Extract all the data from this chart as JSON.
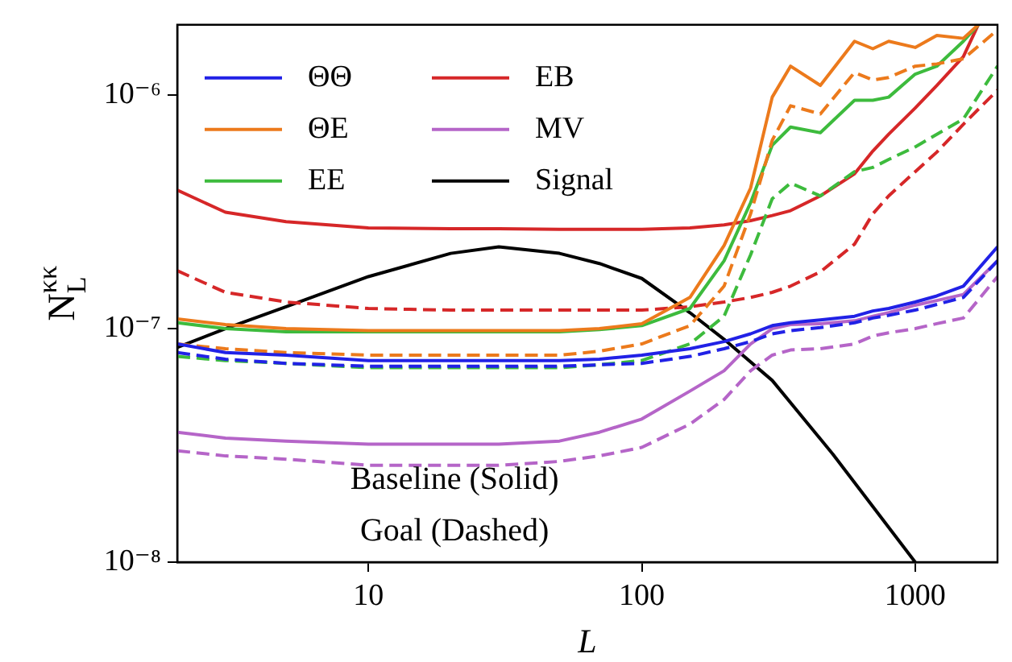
{
  "chart_data": {
    "type": "line",
    "xlabel": "L",
    "ylabel": "N$_{L}$$^{κκ}$",
    "log": "xy",
    "legend": "top left",
    "xlim": [
      2,
      2000
    ],
    "xticks": [
      10,
      100,
      1000
    ],
    "ylim": [
      1e-08,
      2e-06
    ],
    "yticks": [
      {
        "value": 1e-08,
        "label": "10⁻⁸"
      },
      {
        "value": 1e-07,
        "label": "10⁻⁷"
      },
      {
        "value": 1e-06,
        "label": "10⁻⁶"
      }
    ],
    "annotations": [
      "Baseline (Solid)",
      "Goal (Dashed)"
    ],
    "x": [
      2,
      3,
      5,
      10,
      20,
      30,
      50,
      70,
      100,
      150,
      200,
      250,
      300,
      350,
      450,
      600,
      700,
      800,
      1000,
      1200,
      1500,
      2000
    ],
    "series": [
      {
        "name": "ΘΘ",
        "color": "#2121e6",
        "line_style": "solid",
        "values": [
          8.6e-08,
          7.9e-08,
          7.7e-08,
          7.3e-08,
          7.3e-08,
          7.3e-08,
          7.3e-08,
          7.4e-08,
          7.7e-08,
          8.2e-08,
          8.8e-08,
          9.5e-08,
          1.03e-07,
          1.06e-07,
          1.09e-07,
          1.13e-07,
          1.19e-07,
          1.22e-07,
          1.3e-07,
          1.38e-07,
          1.52e-07,
          2.24e-07
        ]
      },
      {
        "color": "#2121e6",
        "line_style": "dashed",
        "values": [
          7.9e-08,
          7.4e-08,
          7.1e-08,
          6.9e-08,
          6.9e-08,
          6.9e-08,
          6.9e-08,
          7e-08,
          7.1e-08,
          7.6e-08,
          8.2e-08,
          8.8e-08,
          9.5e-08,
          9.8e-08,
          1.01e-07,
          1.06e-07,
          1.11e-07,
          1.14e-07,
          1.2e-07,
          1.27e-07,
          1.36e-07,
          1.95e-07
        ]
      },
      {
        "name": "ΘE",
        "color": "#ec7a1c",
        "line_style": "solid",
        "x": [
          2,
          3,
          5,
          10,
          20,
          30,
          50,
          70,
          100,
          150,
          200,
          250,
          300,
          350,
          450,
          600,
          700,
          800,
          1000,
          1200,
          1500,
          1700
        ],
        "values": [
          1.1e-07,
          1.04e-07,
          1e-07,
          9.8e-08,
          9.8e-08,
          9.8e-08,
          9.8e-08,
          1e-07,
          1.05e-07,
          1.36e-07,
          2.27e-07,
          4e-07,
          9.8e-07,
          1.33e-06,
          1.1e-06,
          1.7e-06,
          1.58e-06,
          1.7e-06,
          1.6e-06,
          1.8e-06,
          1.75e-06,
          2e-06
        ]
      },
      {
        "color": "#ec7a1c",
        "line_style": "dashed",
        "values": [
          8.6e-08,
          8.2e-08,
          7.9e-08,
          7.7e-08,
          7.7e-08,
          7.7e-08,
          7.7e-08,
          8e-08,
          8.6e-08,
          1.03e-07,
          1.52e-07,
          3.1e-07,
          6.4e-07,
          9e-07,
          8.3e-07,
          1.25e-06,
          1.16e-06,
          1.19e-06,
          1.33e-06,
          1.36e-06,
          1.43e-06,
          1.9e-06
        ]
      },
      {
        "name": "EE",
        "color": "#3dbb3d",
        "line_style": "solid",
        "x": [
          2,
          3,
          5,
          10,
          20,
          30,
          50,
          70,
          100,
          150,
          200,
          250,
          300,
          350,
          450,
          600,
          700,
          800,
          1000,
          1200,
          1500,
          1700
        ],
        "values": [
          1.06e-07,
          1e-07,
          9.7e-08,
          9.7e-08,
          9.7e-08,
          9.7e-08,
          9.7e-08,
          9.9e-08,
          1.03e-07,
          1.22e-07,
          1.95e-07,
          3.46e-07,
          6.1e-07,
          7.3e-07,
          6.9e-07,
          9.5e-07,
          9.5e-07,
          9.8e-07,
          1.23e-06,
          1.33e-06,
          1.7e-06,
          2e-06
        ]
      },
      {
        "color": "#3dbb3d",
        "line_style": "dashed",
        "values": [
          7.6e-08,
          7.3e-08,
          7.1e-08,
          6.8e-08,
          6.8e-08,
          6.8e-08,
          6.8e-08,
          7e-08,
          7.3e-08,
          8.6e-08,
          1.13e-07,
          2.07e-07,
          3.6e-07,
          4.2e-07,
          3.7e-07,
          4.7e-07,
          4.9e-07,
          5.3e-07,
          6e-07,
          6.8e-07,
          7.9e-07,
          1.33e-06
        ]
      },
      {
        "name": "EB",
        "color": "#d62728",
        "line_style": "solid",
        "x": [
          2,
          3,
          5,
          10,
          20,
          30,
          50,
          70,
          100,
          150,
          200,
          250,
          300,
          350,
          450,
          600,
          700,
          800,
          1000,
          1200,
          1500,
          1700
        ],
        "values": [
          3.92e-07,
          3.15e-07,
          2.87e-07,
          2.7e-07,
          2.68e-07,
          2.68e-07,
          2.66e-07,
          2.66e-07,
          2.66e-07,
          2.7e-07,
          2.78e-07,
          2.9e-07,
          3.05e-07,
          3.2e-07,
          3.7e-07,
          4.6e-07,
          5.76e-07,
          6.8e-07,
          8.8e-07,
          1.1e-06,
          1.46e-06,
          2e-06
        ]
      },
      {
        "color": "#d62728",
        "line_style": "dashed",
        "values": [
          1.77e-07,
          1.43e-07,
          1.3e-07,
          1.22e-07,
          1.2e-07,
          1.2e-07,
          1.2e-07,
          1.2e-07,
          1.2e-07,
          1.24e-07,
          1.3e-07,
          1.36e-07,
          1.43e-07,
          1.52e-07,
          1.75e-07,
          2.3e-07,
          3.1e-07,
          3.7e-07,
          4.7e-07,
          5.7e-07,
          7.5e-07,
          1.05e-06
        ]
      },
      {
        "name": "MV",
        "color": "#b565c8",
        "line_style": "solid",
        "values": [
          3.6e-08,
          3.4e-08,
          3.3e-08,
          3.2e-08,
          3.2e-08,
          3.2e-08,
          3.3e-08,
          3.6e-08,
          4.1e-08,
          5.4e-08,
          6.6e-08,
          8.6e-08,
          1e-07,
          1.04e-07,
          1.05e-07,
          1.08e-07,
          1.13e-07,
          1.17e-07,
          1.26e-07,
          1.32e-07,
          1.4e-07,
          1.95e-07
        ]
      },
      {
        "color": "#b565c8",
        "line_style": "dashed",
        "values": [
          3e-08,
          2.85e-08,
          2.76e-08,
          2.6e-08,
          2.6e-08,
          2.6e-08,
          2.7e-08,
          2.85e-08,
          3.1e-08,
          3.9e-08,
          4.97e-08,
          6.6e-08,
          7.7e-08,
          8.1e-08,
          8.2e-08,
          8.6e-08,
          9.3e-08,
          9.6e-08,
          1e-07,
          1.05e-07,
          1.11e-07,
          1.67e-07
        ]
      },
      {
        "name": "Signal",
        "color": "#000000",
        "line_style": "solid",
        "x": [
          2,
          3,
          5,
          10,
          20,
          30,
          50,
          70,
          100,
          150,
          200,
          300,
          500,
          700,
          1000
        ],
        "values": [
          8.3e-08,
          1e-07,
          1.24e-07,
          1.67e-07,
          2.1e-07,
          2.24e-07,
          2.1e-07,
          1.9e-07,
          1.64e-07,
          1.17e-07,
          9e-08,
          6e-08,
          2.9e-08,
          1.73e-08,
          1e-08
        ]
      }
    ]
  }
}
